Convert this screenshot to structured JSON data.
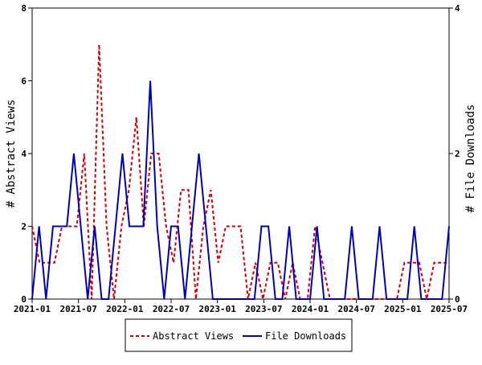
{
  "chart_data": {
    "type": "line",
    "x_tick_labels": [
      "2021-01",
      "2021-07",
      "2022-01",
      "2022-07",
      "2023-01",
      "2023-07",
      "2024-01",
      "2024-07",
      "2025-01",
      "2025-07"
    ],
    "ylabel_left": "# Abstract Views",
    "ylabel_right": "# File Downloads",
    "ylim_left": [
      0,
      8
    ],
    "ylim_right": [
      0,
      4
    ],
    "yticks_left": [
      "0",
      "2",
      "4",
      "6",
      "8"
    ],
    "yticks_right": [
      "0",
      "2",
      "4"
    ],
    "legend_position": "bottom-center",
    "grid": false,
    "series": [
      {
        "name": "Abstract Views",
        "axis": "left",
        "color": "#cc0000",
        "style": "dashed",
        "values": [
          2,
          1,
          1,
          1,
          2,
          2,
          2,
          4,
          0,
          7,
          2,
          0,
          2,
          3,
          5,
          2,
          4,
          4,
          2,
          1,
          3,
          3,
          0,
          2,
          3,
          1,
          2,
          2,
          2,
          0,
          1,
          0,
          1,
          1,
          0,
          1,
          0,
          0,
          2,
          1,
          0,
          0,
          0,
          0,
          0,
          0,
          0,
          0,
          0,
          0,
          1,
          1,
          1,
          0,
          1,
          1,
          1
        ]
      },
      {
        "name": "File Downloads",
        "axis": "right",
        "color": "#0000bb",
        "style": "solid",
        "values": [
          0,
          1,
          0,
          1,
          1,
          1,
          2,
          1,
          0,
          1,
          0,
          0,
          1,
          2,
          1,
          1,
          1,
          3,
          1,
          0,
          1,
          1,
          0,
          1,
          2,
          1,
          0,
          0,
          0,
          0,
          0,
          0,
          0,
          1,
          1,
          0,
          0,
          1,
          0,
          0,
          0,
          1,
          0,
          0,
          0,
          0,
          1,
          0,
          0,
          0,
          1,
          0,
          0,
          0,
          0,
          1,
          0,
          0,
          0,
          0,
          1
        ]
      }
    ]
  }
}
